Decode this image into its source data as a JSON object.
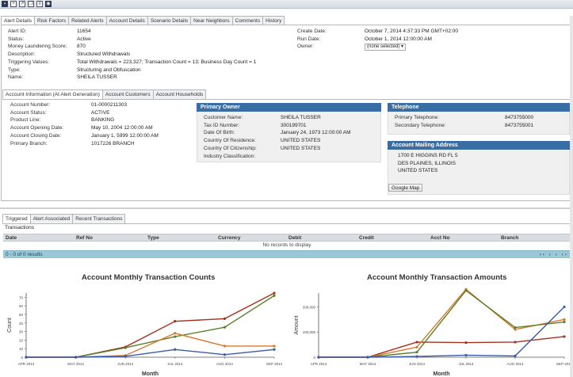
{
  "toolbar": {
    "icons": [
      "save-icon",
      "add-icon",
      "export-icon",
      "copy-icon",
      "document-icon",
      "globe-icon"
    ]
  },
  "main_tabs": [
    {
      "label": "Alert Details",
      "active": true
    },
    {
      "label": "Risk Factors",
      "active": false
    },
    {
      "label": "Related Alerts",
      "active": false
    },
    {
      "label": "Account Details",
      "active": false
    },
    {
      "label": "Scenario Details",
      "active": false
    },
    {
      "label": "Near Neighbors",
      "active": false
    },
    {
      "label": "Comments",
      "active": false
    },
    {
      "label": "History",
      "active": false
    }
  ],
  "alert": {
    "left": [
      {
        "key": "Alert ID:",
        "value": "11654"
      },
      {
        "key": "Status:",
        "value": "Active"
      },
      {
        "key": "Money Laundering Score:",
        "value": "870"
      },
      {
        "key": "Description:",
        "value": "Structured Withdrawals"
      },
      {
        "key": "Triggering Values:",
        "value": "Total Withdrawals =  223,327; Transaction Count = 13; Business Day Count = 1"
      },
      {
        "key": "Type:",
        "value": "Structuring and Obfuscation"
      },
      {
        "key": "Name:",
        "value": "SHEILA TUSSER"
      }
    ],
    "right": [
      {
        "key": "Create Date:",
        "value": "October 7, 2014 4:37:33 PM GMT+02:00"
      },
      {
        "key": "Run Date:",
        "value": "October 1, 2014 12:00:00 AM"
      },
      {
        "key": "Owner:",
        "value": "(none selected)"
      }
    ]
  },
  "account_tabs": [
    {
      "label": "Account Information (At Alert Generation)",
      "active": true
    },
    {
      "label": "Account Customers",
      "active": false
    },
    {
      "label": "Account Households",
      "active": false
    }
  ],
  "account": [
    {
      "key": "Account Number:",
      "value": "01-0000211303"
    },
    {
      "key": "Account Status:",
      "value": "ACTIVE"
    },
    {
      "key": "Product Line:",
      "value": "BANKING"
    },
    {
      "key": "Account Opening Date:",
      "value": "May 10, 2004 12:00:00 AM"
    },
    {
      "key": "Account Closing Date:",
      "value": "January 1, 5999 12:00:00 AM"
    },
    {
      "key": "Primary Branch:",
      "value": "1017226 BRANCH"
    }
  ],
  "primary_owner": {
    "title": "Primary Owner",
    "rows": [
      {
        "key": "Customer Name:",
        "value": "SHEILA TUSSER"
      },
      {
        "key": "Tax ID Number:",
        "value": "300199701"
      },
      {
        "key": "Date Of Birth:",
        "value": "January 24, 1973 12:00:00 AM"
      },
      {
        "key": "Country Of Residence:",
        "value": "UNITED STATES"
      },
      {
        "key": "Country Of Citizenship:",
        "value": "UNITED STATES"
      },
      {
        "key": "Industry Classification:",
        "value": ""
      }
    ]
  },
  "telephone": {
    "title": "Telephone",
    "rows": [
      {
        "key": "Primary Telephone:",
        "value": "8473755000"
      },
      {
        "key": "Secondary Telephone:",
        "value": "8473755001"
      }
    ]
  },
  "mailing": {
    "title": "Account Mailing Address",
    "lines": [
      "1700 E HIGGINS RD FL 5",
      "DES PLAINES, ILLINOIS",
      "UNITED STATES"
    ],
    "map_button": "Google Map"
  },
  "txn_tabs": [
    {
      "label": "Triggered",
      "active": true
    },
    {
      "label": "Alert Associated",
      "active": false
    },
    {
      "label": "Recent Transactions",
      "active": false
    }
  ],
  "transactions": {
    "label": "Transactions",
    "columns": [
      "Date",
      "Ref No",
      "Type",
      "Currency",
      "Debit",
      "Credit",
      "Acct No",
      "Branch"
    ],
    "empty_text": "No records to display",
    "pager_text": "0 - 0 of 0 results",
    "pager_nav": "‹‹ ‹ › ››"
  },
  "chart_data": [
    {
      "type": "line",
      "title": "Account Monthly Transaction Counts",
      "xlabel": "Month",
      "ylabel": "Count",
      "categories": [
        "APR 2014",
        "MAY 2014",
        "JUN 2014",
        "JUL 2014",
        "AUG 2014",
        "SEP 2014"
      ],
      "ylim": [
        0,
        75
      ],
      "yticks": [
        0,
        10,
        20,
        30,
        40,
        50,
        60,
        70
      ],
      "series": [
        {
          "color": "#a3311f",
          "values": [
            0,
            0,
            12,
            42,
            45,
            75
          ]
        },
        {
          "color": "#5b7f2b",
          "values": [
            0,
            0,
            11,
            24,
            35,
            72
          ]
        },
        {
          "color": "#d9782a",
          "values": [
            0,
            0,
            2,
            28,
            13,
            13
          ]
        },
        {
          "color": "#3a5ba8",
          "values": [
            0,
            0,
            1,
            9,
            3,
            9
          ]
        }
      ]
    },
    {
      "type": "line",
      "title": "Account Monthly Transaction Amounts",
      "xlabel": "Month",
      "ylabel": "Amount",
      "categories": [
        "APR 2014",
        "MAY 2014",
        "JUN 2014",
        "JUL 2014",
        "AUG 2014",
        "SEP 2014"
      ],
      "ylim": [
        0,
        255000
      ],
      "yticks": [
        0,
        100000,
        200000
      ],
      "ytick_labels": [
        "0",
        "100,000",
        "200,000"
      ],
      "series": [
        {
          "color": "#a3311f",
          "values": [
            0,
            0,
            60000,
            58000,
            60000,
            82000
          ]
        },
        {
          "color": "#d9782a",
          "values": [
            0,
            0,
            40000,
            270000,
            110000,
            150000
          ]
        },
        {
          "color": "#5b7f2b",
          "values": [
            0,
            0,
            20000,
            265000,
            118000,
            140000
          ]
        },
        {
          "color": "#3a5ba8",
          "values": [
            0,
            0,
            3000,
            8000,
            5000,
            200000
          ]
        }
      ]
    }
  ]
}
